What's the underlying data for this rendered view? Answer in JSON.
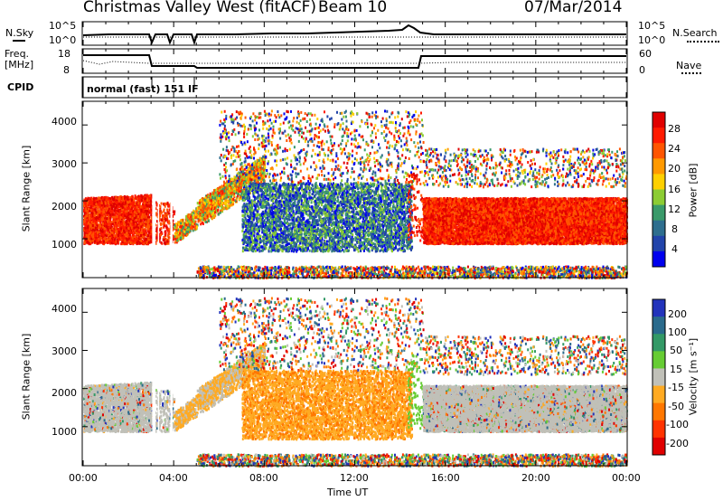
{
  "header": {
    "station": "Christmas Valley West (fitACF)",
    "beam": "Beam 10",
    "date": "07/Mar/2014"
  },
  "panels": {
    "nsky_label": "N.Sky",
    "nsky_ticks": [
      "10^5",
      "10^0"
    ],
    "nsearch_label": "N.Search",
    "nsearch_ticks": [
      "10^5",
      "10^0"
    ],
    "freq_label_1": "Freq.",
    "freq_label_2": "[MHz]",
    "freq_ticks": [
      "18",
      "8"
    ],
    "nave_label": "Nave",
    "nave_ticks": [
      "60",
      "0"
    ],
    "cpid_label": "CPID",
    "cpid_text": "normal (fast) 151 IF"
  },
  "chart_data": [
    {
      "type": "heatmap",
      "name": "power",
      "ylabel": "Slant Range [km]",
      "yticks": [
        "4000",
        "3000",
        "2000",
        "1000"
      ],
      "ylim": [
        0,
        4600
      ],
      "colorbar_label": "Power [dB]",
      "colorbar_ticks": [
        "28",
        "24",
        "20",
        "16",
        "12",
        "8",
        "4"
      ],
      "colors": [
        "#0000ee",
        "#2244aa",
        "#2e6e8e",
        "#3a9a6a",
        "#8ccc33",
        "#ffd000",
        "#ff9900",
        "#ff5500",
        "#ff1a00",
        "#e00000"
      ]
    },
    {
      "type": "heatmap",
      "name": "velocity",
      "ylabel": "Slant Range [km]",
      "yticks": [
        "4000",
        "3000",
        "2000",
        "1000"
      ],
      "ylim": [
        0,
        4600
      ],
      "xlabel": "Time UT",
      "xticks": [
        "00:00",
        "04:00",
        "08:00",
        "12:00",
        "16:00",
        "20:00",
        "00:00"
      ],
      "colorbar_label": "Velocity [m s⁻¹]",
      "colorbar_ticks": [
        "200",
        "100",
        "50",
        "15",
        "-15",
        "-50",
        "-100",
        "-200"
      ],
      "colors": [
        "#2233bb",
        "#2a6a8c",
        "#339966",
        "#66cc33",
        "#c0c0b8",
        "#ffaa22",
        "#ff7700",
        "#ff3300",
        "#e00000"
      ]
    }
  ]
}
